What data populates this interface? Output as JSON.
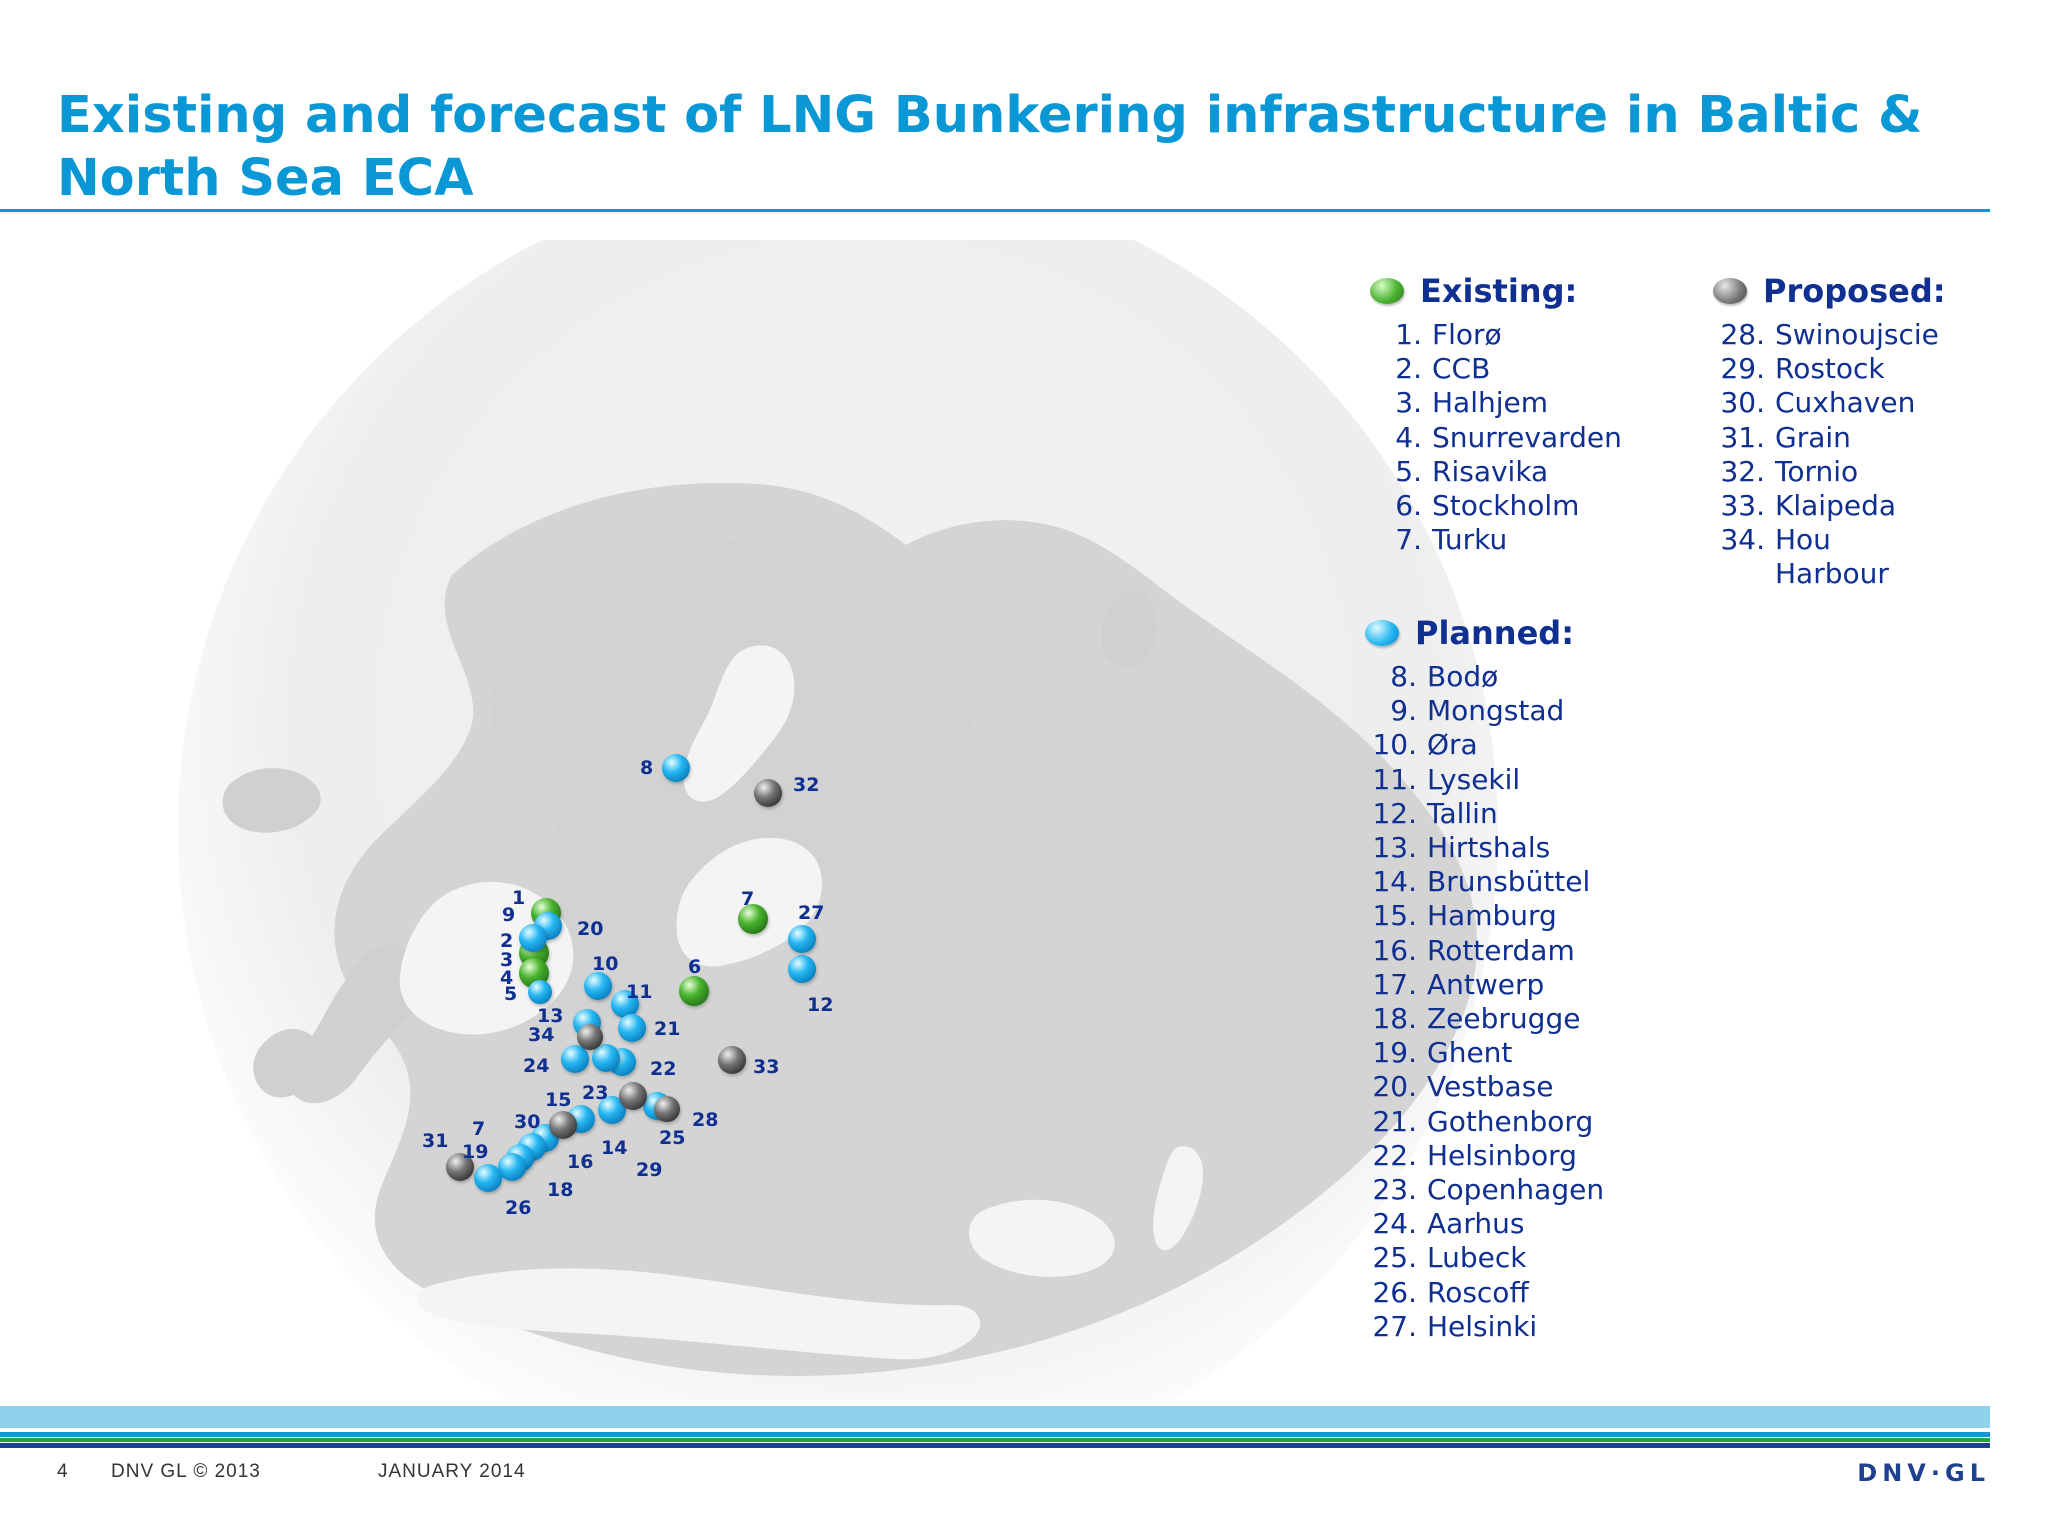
{
  "title": "Existing and forecast of LNG Bunkering infrastructure in Baltic & North Sea ECA",
  "legend": {
    "existing": {
      "heading": "Existing:",
      "items": [
        {
          "num": "1.",
          "name": "Florø"
        },
        {
          "num": "2.",
          "name": "CCB"
        },
        {
          "num": "3.",
          "name": "Halhjem"
        },
        {
          "num": "4.",
          "name": "Snurrevarden"
        },
        {
          "num": "5.",
          "name": "Risavika"
        },
        {
          "num": "6.",
          "name": "Stockholm"
        },
        {
          "num": "7.",
          "name": "Turku"
        }
      ]
    },
    "planned": {
      "heading": "Planned:",
      "items": [
        {
          "num": "8.",
          "name": "Bodø"
        },
        {
          "num": "9.",
          "name": "Mongstad"
        },
        {
          "num": "10.",
          "name": "Øra"
        },
        {
          "num": "11.",
          "name": "Lysekil"
        },
        {
          "num": "12.",
          "name": "Tallin"
        },
        {
          "num": "13.",
          "name": "Hirtshals"
        },
        {
          "num": "14.",
          "name": "Brunsbüttel"
        },
        {
          "num": "15.",
          "name": "Hamburg"
        },
        {
          "num": "16.",
          "name": "Rotterdam"
        },
        {
          "num": "17.",
          "name": "Antwerp"
        },
        {
          "num": "18.",
          "name": "Zeebrugge"
        },
        {
          "num": "19.",
          "name": "Ghent"
        },
        {
          "num": "20.",
          "name": "Vestbase"
        },
        {
          "num": "21.",
          "name": "Gothenborg"
        },
        {
          "num": "22.",
          "name": "Helsinborg"
        },
        {
          "num": "23.",
          "name": "Copenhagen"
        },
        {
          "num": "24.",
          "name": "Aarhus"
        },
        {
          "num": "25.",
          "name": "Lubeck"
        },
        {
          "num": "26.",
          "name": "Roscoff"
        },
        {
          "num": "27.",
          "name": "Helsinki"
        }
      ]
    },
    "proposed": {
      "heading": "Proposed:",
      "items": [
        {
          "num": "28.",
          "name": "Swinoujscie"
        },
        {
          "num": "29.",
          "name": "Rostock"
        },
        {
          "num": "30.",
          "name": "Cuxhaven"
        },
        {
          "num": "31.",
          "name": "Grain"
        },
        {
          "num": "32.",
          "name": "Tornio"
        },
        {
          "num": "33.",
          "name": "Klaipeda"
        },
        {
          "num": "34.",
          "name": "Hou Harbour"
        }
      ]
    }
  },
  "map_labels": {
    "l1": "1",
    "l9": "9",
    "l2": "2",
    "l3": "3",
    "l4": "4",
    "l5": "5",
    "l20": "20",
    "l10": "10",
    "l11": "11",
    "l6": "6",
    "l7n": "7",
    "l27": "27",
    "l12": "12",
    "l8": "8",
    "l32": "32",
    "l13": "13",
    "l34": "34",
    "l21": "21",
    "l24": "24",
    "l22": "22",
    "l33": "33",
    "l15": "15",
    "l23": "23",
    "l28": "28",
    "l30": "30",
    "l7s": "7",
    "l31": "31",
    "l19": "19",
    "l16": "16",
    "l14": "14",
    "l25": "25",
    "l29": "29",
    "l18": "18",
    "l26": "26"
  },
  "footer": {
    "page": "4",
    "copyright": "DNV GL © 2013",
    "date": "JANUARY 2014",
    "logo": "DNV·GL"
  },
  "colors": {
    "title": "#0a97d6",
    "legend_text": "#0f2f91",
    "existing": "#49b131",
    "planned": "#26b7f2",
    "proposed": "#7c7c7c",
    "map_land": "#d7d7d7",
    "map_background": "#e4e4e4"
  }
}
